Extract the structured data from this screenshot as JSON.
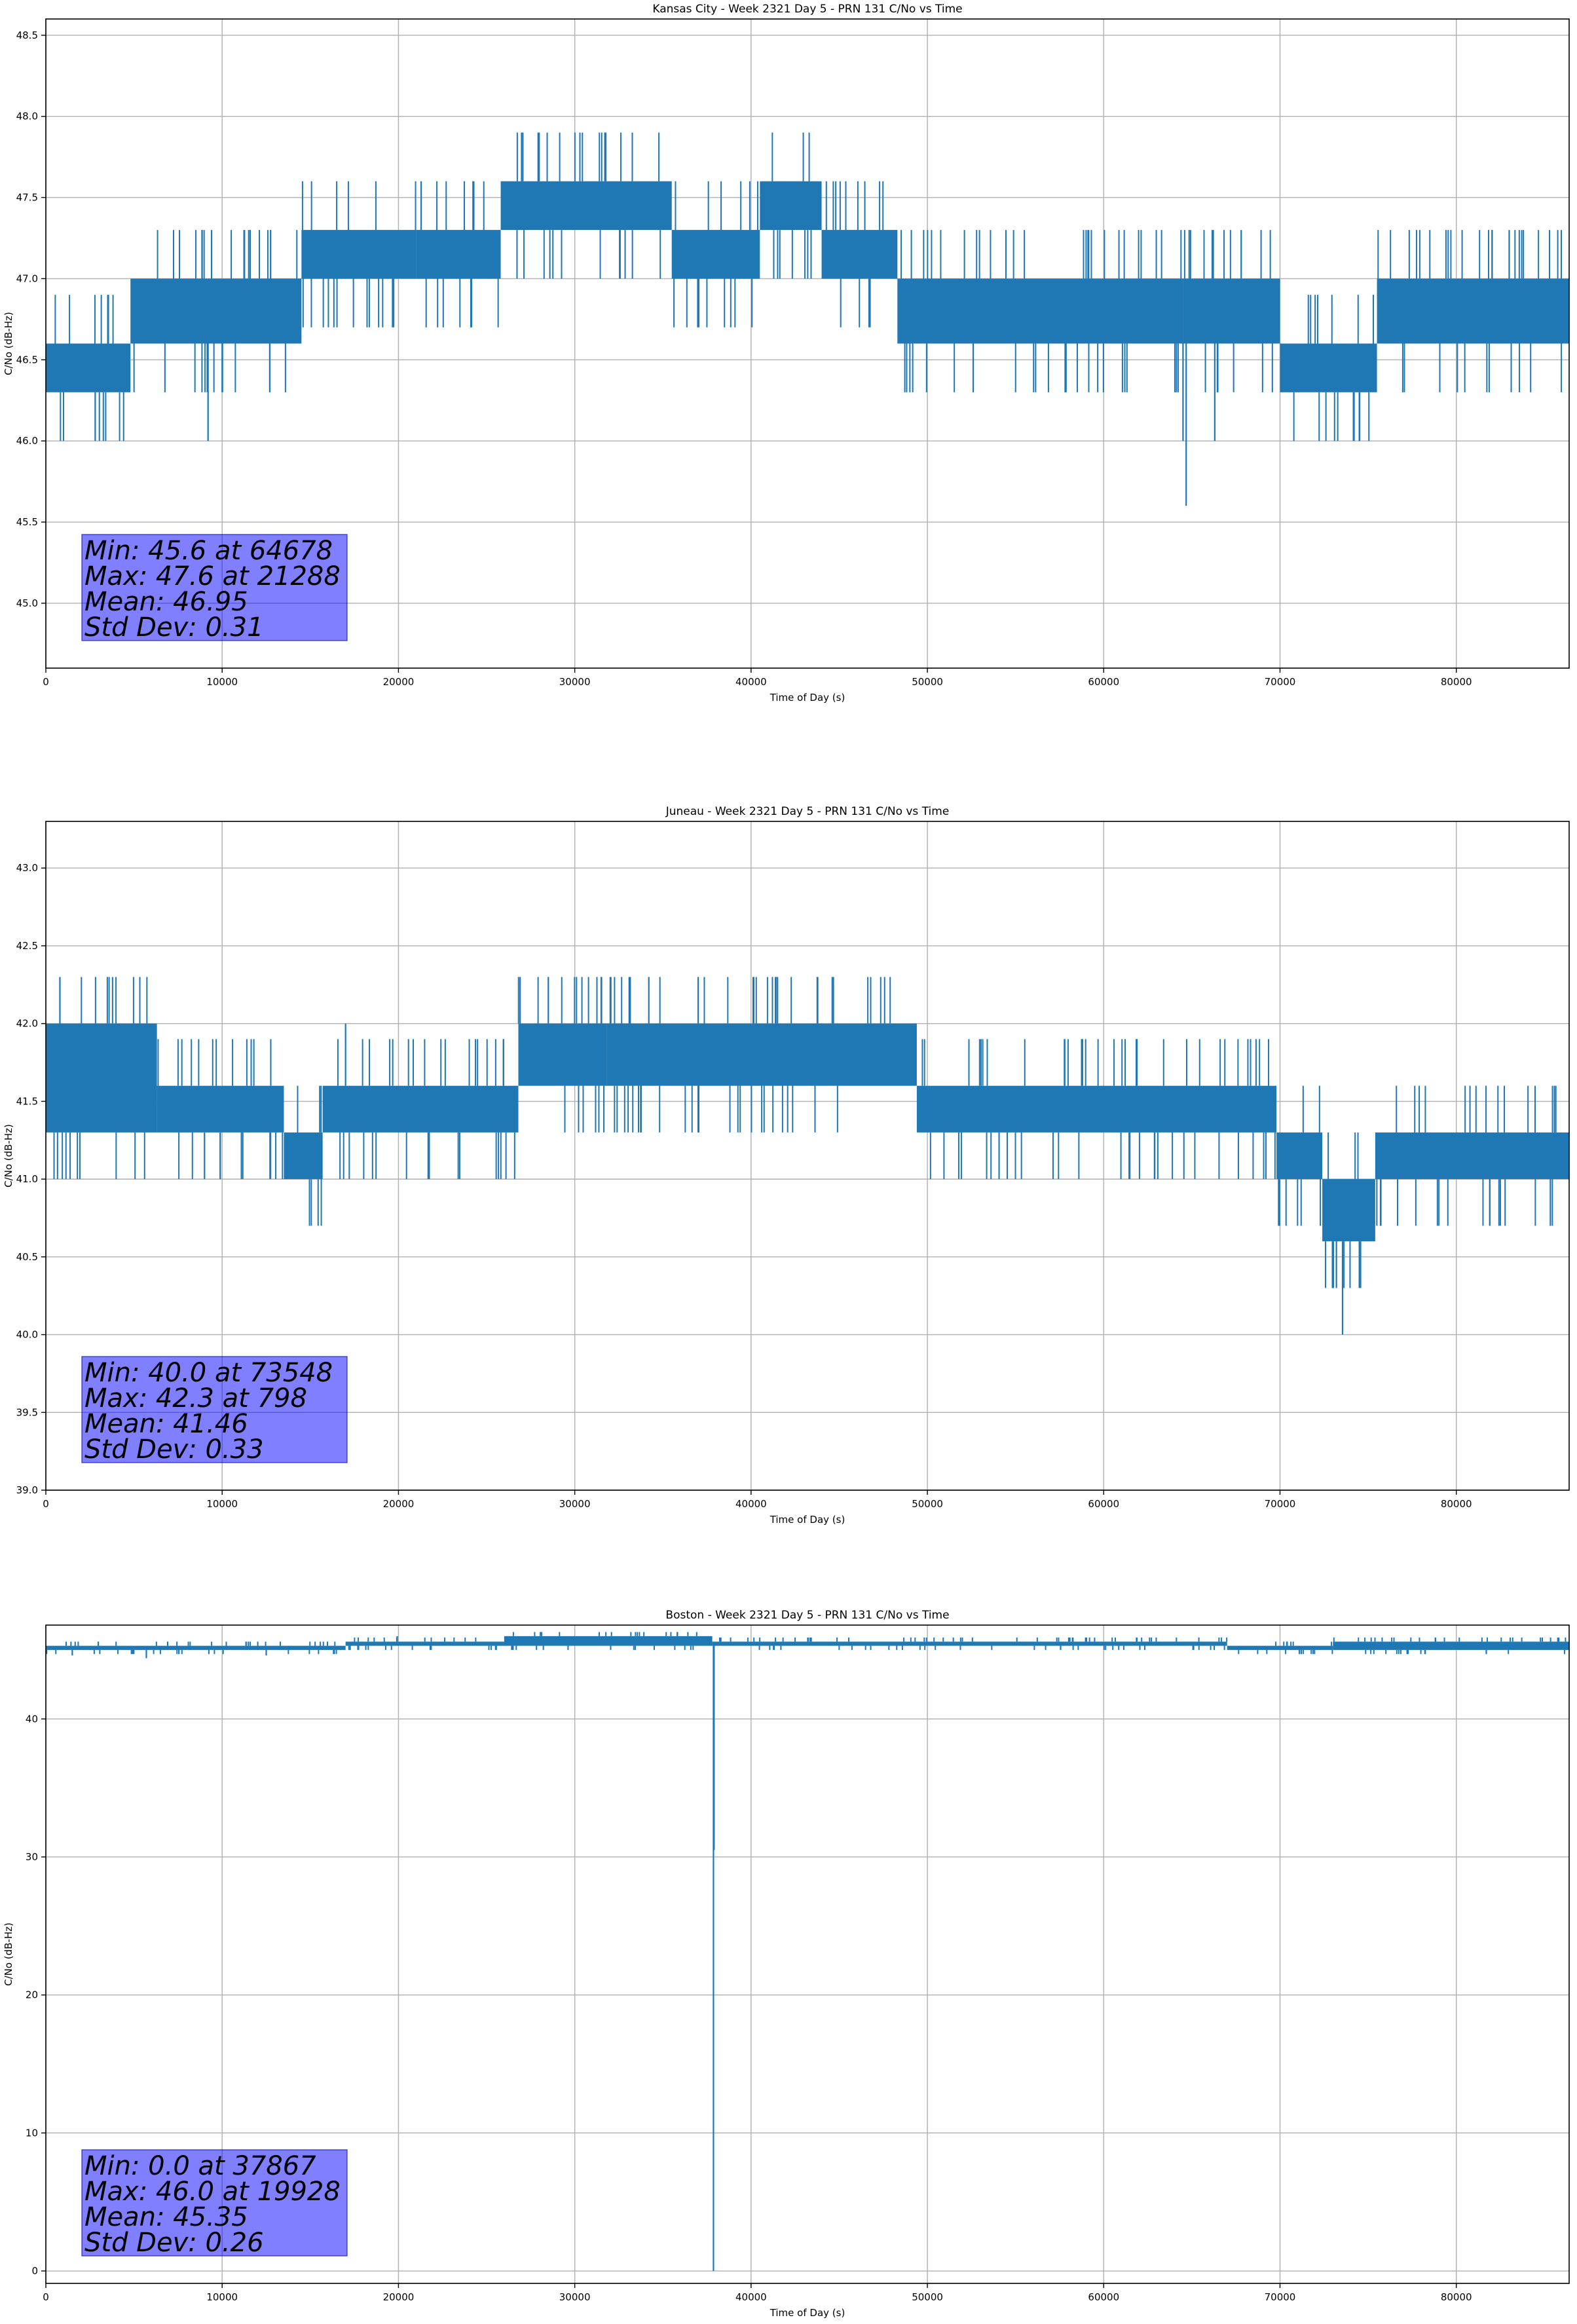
{
  "chart_data": [
    {
      "type": "line",
      "title": "Kansas City - Week 2321 Day 5 - PRN 131 C/No vs Time",
      "xlabel": "Time of Day (s)",
      "ylabel": "C/No (dB-Hz)",
      "xlim": [
        0,
        86400
      ],
      "ylim": [
        44.6,
        48.6
      ],
      "xticks": [
        0,
        10000,
        20000,
        30000,
        40000,
        50000,
        60000,
        70000,
        80000
      ],
      "yticks": [
        45.0,
        45.5,
        46.0,
        46.5,
        47.0,
        47.5,
        48.0,
        48.5
      ],
      "ytick_labels": [
        "45.0",
        "45.5",
        "46.0",
        "46.5",
        "47.0",
        "47.5",
        "48.0",
        "48.5"
      ],
      "grid": true,
      "color": "#1f77b4",
      "series": [
        {
          "bands": [
            {
              "x0": 0,
              "x1": 4800,
              "lo": 46.3,
              "hi": 46.6
            },
            {
              "x0": 4800,
              "x1": 14500,
              "lo": 46.6,
              "hi": 47.0
            },
            {
              "x0": 14500,
              "x1": 21000,
              "lo": 47.0,
              "hi": 47.3
            },
            {
              "x0": 21000,
              "x1": 25800,
              "lo": 47.0,
              "hi": 47.3
            },
            {
              "x0": 25800,
              "x1": 35500,
              "lo": 47.3,
              "hi": 47.6
            },
            {
              "x0": 35500,
              "x1": 40500,
              "lo": 47.0,
              "hi": 47.3
            },
            {
              "x0": 40500,
              "x1": 44000,
              "lo": 47.3,
              "hi": 47.6
            },
            {
              "x0": 44000,
              "x1": 48300,
              "lo": 47.0,
              "hi": 47.3
            },
            {
              "x0": 48300,
              "x1": 64500,
              "lo": 46.6,
              "hi": 47.0
            },
            {
              "x0": 64500,
              "x1": 70000,
              "lo": 46.6,
              "hi": 47.0
            },
            {
              "x0": 70000,
              "x1": 75500,
              "lo": 46.3,
              "hi": 46.6
            },
            {
              "x0": 75500,
              "x1": 86400,
              "lo": 46.6,
              "hi": 47.0
            }
          ],
          "spikes": [
            {
              "x": 2800,
              "y": 46.0
            },
            {
              "x": 9200,
              "y": 46.0
            },
            {
              "x": 9400,
              "y": 47.3
            },
            {
              "x": 12700,
              "y": 46.3
            },
            {
              "x": 21288,
              "y": 47.6
            },
            {
              "x": 52600,
              "y": 46.3
            },
            {
              "x": 64678,
              "y": 45.6
            },
            {
              "x": 64500,
              "y": 46.0
            },
            {
              "x": 66300,
              "y": 46.0
            },
            {
              "x": 67800,
              "y": 47.3
            },
            {
              "x": 74200,
              "y": 46.0
            },
            {
              "x": 74500,
              "y": 46.0
            },
            {
              "x": 83000,
              "y": 47.3
            }
          ]
        }
      ],
      "stats": [
        "Min: 45.6 at 64678",
        "Max: 47.6 at 21288",
        "Mean: 46.95",
        "Std Dev: 0.31"
      ]
    },
    {
      "type": "line",
      "title": "Juneau - Week 2321 Day 5 - PRN 131 C/No vs Time",
      "xlabel": "Time of Day (s)",
      "ylabel": "C/No (dB-Hz)",
      "xlim": [
        0,
        86400
      ],
      "ylim": [
        39.0,
        43.3
      ],
      "xticks": [
        0,
        10000,
        20000,
        30000,
        40000,
        50000,
        60000,
        70000,
        80000
      ],
      "yticks": [
        39.0,
        39.5,
        40.0,
        40.5,
        41.0,
        41.5,
        42.0,
        42.5,
        43.0
      ],
      "ytick_labels": [
        "39.0",
        "39.5",
        "40.0",
        "40.5",
        "41.0",
        "41.5",
        "42.0",
        "42.5",
        "43.0"
      ],
      "grid": true,
      "color": "#1f77b4",
      "series": [
        {
          "bands": [
            {
              "x0": 0,
              "x1": 6300,
              "lo": 41.3,
              "hi": 42.0
            },
            {
              "x0": 6300,
              "x1": 13500,
              "lo": 41.3,
              "hi": 41.6
            },
            {
              "x0": 13500,
              "x1": 15700,
              "lo": 41.0,
              "hi": 41.3
            },
            {
              "x0": 15700,
              "x1": 26800,
              "lo": 41.3,
              "hi": 41.6
            },
            {
              "x0": 26800,
              "x1": 31800,
              "lo": 41.6,
              "hi": 42.0
            },
            {
              "x0": 31800,
              "x1": 49400,
              "lo": 41.6,
              "hi": 42.0
            },
            {
              "x0": 49400,
              "x1": 69800,
              "lo": 41.3,
              "hi": 41.6
            },
            {
              "x0": 69800,
              "x1": 72400,
              "lo": 41.0,
              "hi": 41.3
            },
            {
              "x0": 72400,
              "x1": 75400,
              "lo": 40.6,
              "hi": 41.0
            },
            {
              "x0": 75400,
              "x1": 86400,
              "lo": 41.0,
              "hi": 41.3
            }
          ],
          "spikes": [
            {
              "x": 798,
              "y": 42.3
            },
            {
              "x": 9000,
              "y": 41.0
            },
            {
              "x": 17000,
              "y": 42.0
            },
            {
              "x": 26900,
              "y": 42.3
            },
            {
              "x": 28500,
              "y": 42.3
            },
            {
              "x": 31500,
              "y": 42.3
            },
            {
              "x": 34200,
              "y": 42.3
            },
            {
              "x": 37000,
              "y": 42.3
            },
            {
              "x": 41500,
              "y": 42.3
            },
            {
              "x": 73548,
              "y": 40.0
            },
            {
              "x": 73200,
              "y": 40.3
            },
            {
              "x": 74500,
              "y": 40.3
            }
          ]
        }
      ],
      "stats": [
        "Min: 40.0 at 73548",
        "Max: 42.3 at 798",
        "Mean: 41.46",
        "Std Dev: 0.33"
      ]
    },
    {
      "type": "line",
      "title": "Boston - Week 2321 Day 5 - PRN 131 C/No vs Time",
      "xlabel": "Time of Day (s)",
      "ylabel": "C/No (dB-Hz)",
      "xlim": [
        0,
        86400
      ],
      "ylim": [
        -0.9,
        46.8
      ],
      "xticks": [
        0,
        10000,
        20000,
        30000,
        40000,
        50000,
        60000,
        70000,
        80000
      ],
      "yticks": [
        0,
        10,
        20,
        30,
        40
      ],
      "ytick_labels": [
        "0",
        "10",
        "20",
        "30",
        "40"
      ],
      "grid": true,
      "color": "#1f77b4",
      "series": [
        {
          "bands": [
            {
              "x0": 0,
              "x1": 17000,
              "lo": 45.0,
              "hi": 45.3
            },
            {
              "x0": 17000,
              "x1": 26000,
              "lo": 45.3,
              "hi": 45.6
            },
            {
              "x0": 26000,
              "x1": 37800,
              "lo": 45.3,
              "hi": 46.0
            },
            {
              "x0": 37800,
              "x1": 67000,
              "lo": 45.3,
              "hi": 45.6
            },
            {
              "x0": 67000,
              "x1": 73000,
              "lo": 45.0,
              "hi": 45.3
            },
            {
              "x0": 73000,
              "x1": 86400,
              "lo": 45.0,
              "hi": 45.6
            }
          ],
          "spikes": [
            {
              "x": 37867,
              "y": 0.0
            },
            {
              "x": 37900,
              "y": 30.5
            },
            {
              "x": 1500,
              "y": 44.6
            },
            {
              "x": 5700,
              "y": 44.4
            },
            {
              "x": 12500,
              "y": 44.6
            },
            {
              "x": 19928,
              "y": 46.0
            },
            {
              "x": 71200,
              "y": 44.7
            },
            {
              "x": 81700,
              "y": 44.7
            }
          ]
        }
      ],
      "stats": [
        "Min: 0.0 at 37867",
        "Max: 46.0 at 19928",
        "Mean: 45.35",
        "Std Dev: 0.26"
      ]
    }
  ]
}
